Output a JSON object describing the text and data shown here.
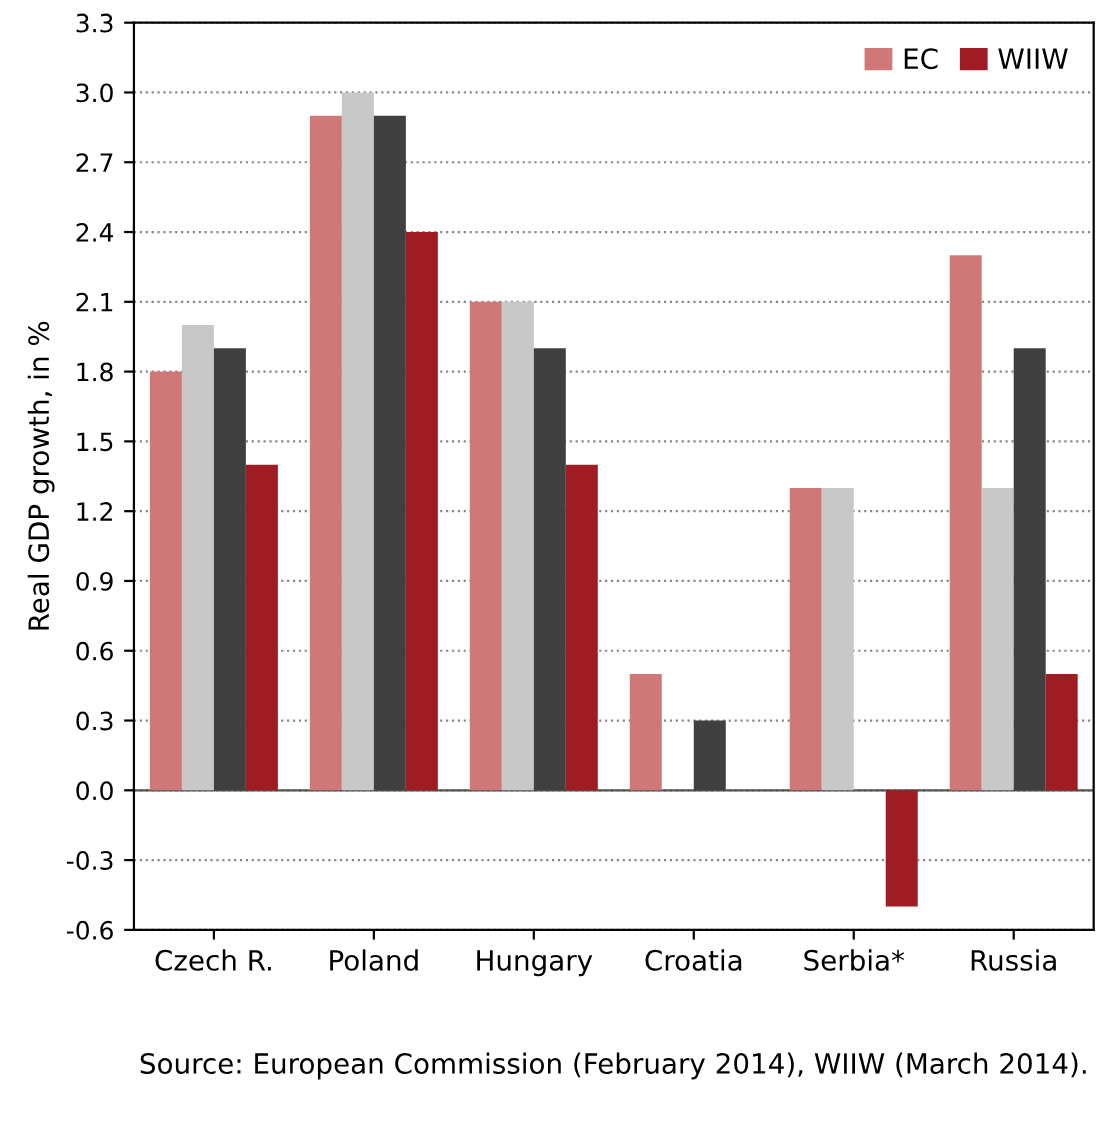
{
  "chart_data": {
    "type": "bar",
    "ylabel": "Real GDP growth, in %",
    "categories": [
      "Czech R.",
      "Poland",
      "Hungary",
      "Croatia",
      "Serbia*",
      "Russia"
    ],
    "series": [
      {
        "name": "EC",
        "color": "#d07878",
        "values": [
          1.8,
          2.9,
          2.1,
          0.5,
          1.3,
          2.3
        ]
      },
      {
        "color": "#c8c8c8",
        "values": [
          2.0,
          3.0,
          2.1,
          null,
          1.3,
          1.3
        ]
      },
      {
        "color": "#404040",
        "values": [
          1.9,
          2.9,
          1.9,
          0.3,
          null,
          1.9
        ]
      },
      {
        "name": "WIIW",
        "color": "#a01c24",
        "values": [
          1.4,
          2.4,
          1.4,
          null,
          -0.5,
          0.5
        ]
      }
    ],
    "ylim": [
      -0.6,
      3.3
    ],
    "yticks": [
      -0.6,
      -0.3,
      {
        "value": 0,
        "label": "0.0"
      },
      0.3,
      0.6,
      0.9,
      1.2,
      1.5,
      1.8,
      2.1,
      2.4,
      2.7,
      {
        "value": 3,
        "label": "3.0"
      },
      3.3
    ],
    "grid": "y",
    "legend": "top right",
    "annotations": [
      "Source: European Commission (February 2014), WIIW (March 2014)."
    ]
  }
}
